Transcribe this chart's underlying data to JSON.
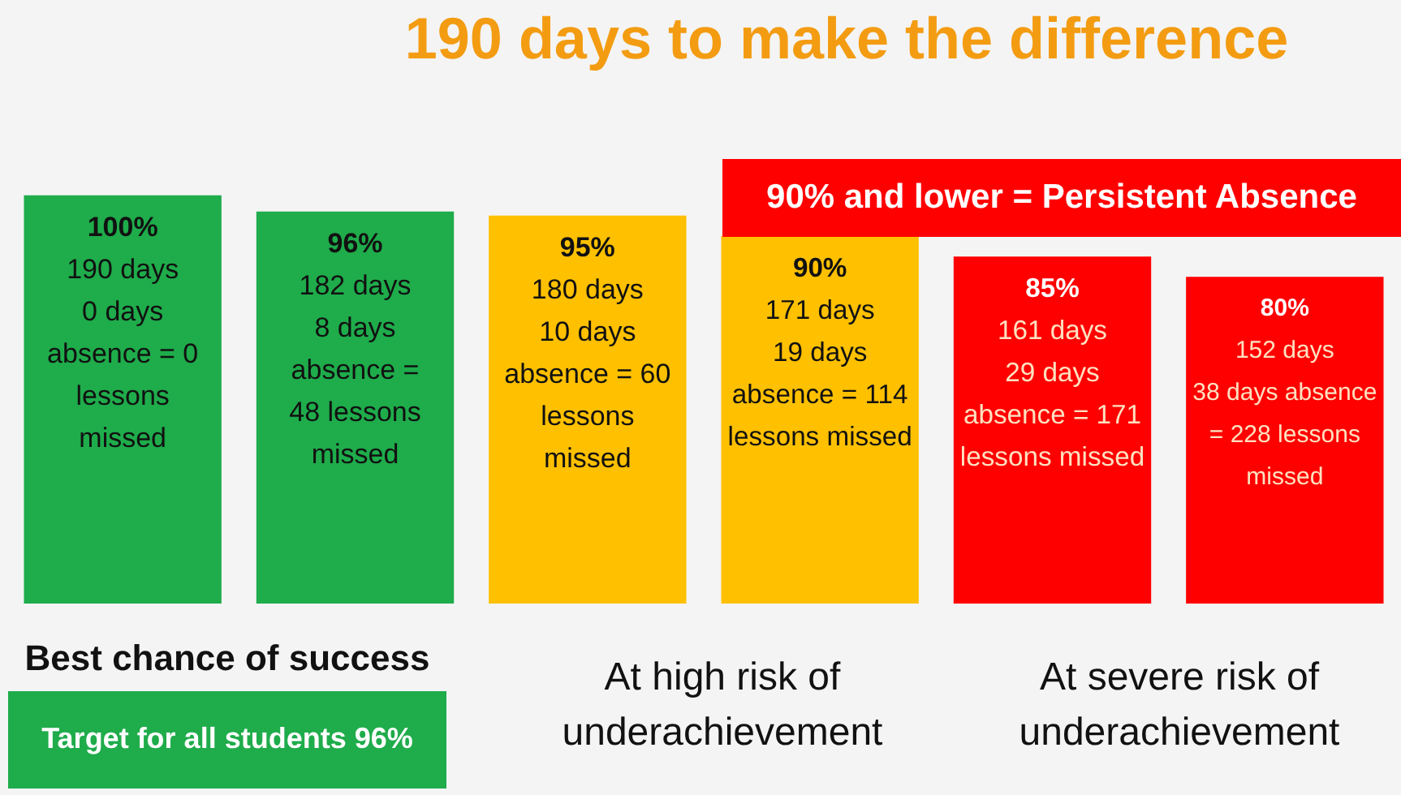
{
  "chart_data": {
    "type": "bar",
    "title": "190 days to make the difference",
    "categories": [
      null,
      null,
      null,
      null,
      null,
      null
    ],
    "values": [
      100,
      96,
      95,
      90,
      85,
      80
    ],
    "colors": [
      "#1fac4b",
      "#1fac4b",
      "#ffc000",
      "#ffc000",
      "#ff0000",
      "#ff0000"
    ],
    "value_labels": [
      "100%\n190 days\n0 days\nabsence = 0\nlessons\nmissed",
      "96%\n182 days\n8 days\nabsence =\n48 lessons\nmissed",
      "95%\n180 days\n10 days\nabsence = 60\nlessons\nmissed",
      "90%\n171 days\n19 days\nabsence = 114\nlessons missed",
      "85%\n161 days\n29 days\nabsence = 171\nlessons missed",
      "80%\n152 days\n38 days absence\n= 228 lessons\nmissed"
    ],
    "annotations": [
      "90% and lower = Persistent Absence",
      "Best chance of success",
      "Target for all students 96%",
      "At high risk of\nunderachievement",
      "At severe risk of\nunderachievement"
    ],
    "legend": false
  }
}
